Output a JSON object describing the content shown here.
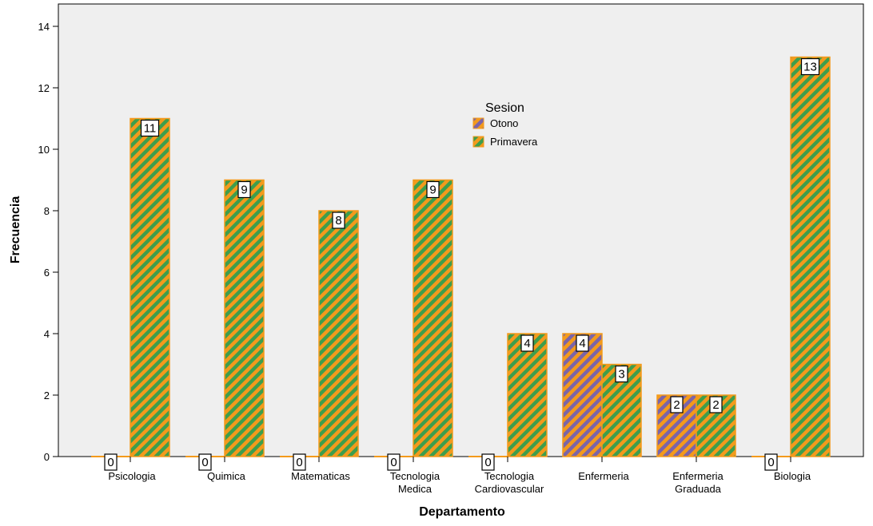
{
  "chart_data": {
    "type": "bar",
    "title": "",
    "xlabel": "Departamento",
    "ylabel": "Frecuencia",
    "ylim": [
      0,
      14
    ],
    "yticks": [
      0,
      2,
      4,
      6,
      8,
      10,
      12,
      14
    ],
    "grid": false,
    "legend_position": "top-center",
    "legend_title": "Sesion",
    "categories": [
      [
        "Psicologia"
      ],
      [
        "Quimica"
      ],
      [
        "Matematicas"
      ],
      [
        "Tecnologia",
        "Medica"
      ],
      [
        "Tecnologia",
        "Cardiovascular"
      ],
      [
        "Enfermeria"
      ],
      [
        "Enfermeria",
        "Graduada"
      ],
      [
        "Biologia"
      ]
    ],
    "series": [
      {
        "name": "Otono",
        "values": [
          0,
          0,
          0,
          0,
          0,
          4,
          2,
          0
        ],
        "color": "#f39a1c",
        "stripe_color": "#7b64a8"
      },
      {
        "name": "Primavera",
        "values": [
          11,
          9,
          8,
          9,
          4,
          3,
          2,
          13
        ],
        "color": "#f39a1c",
        "stripe_color": "#3e9e4c"
      }
    ],
    "colors": {
      "background": "#efefef",
      "frame": "#000000",
      "bar_outline": "#f39a1c"
    }
  }
}
